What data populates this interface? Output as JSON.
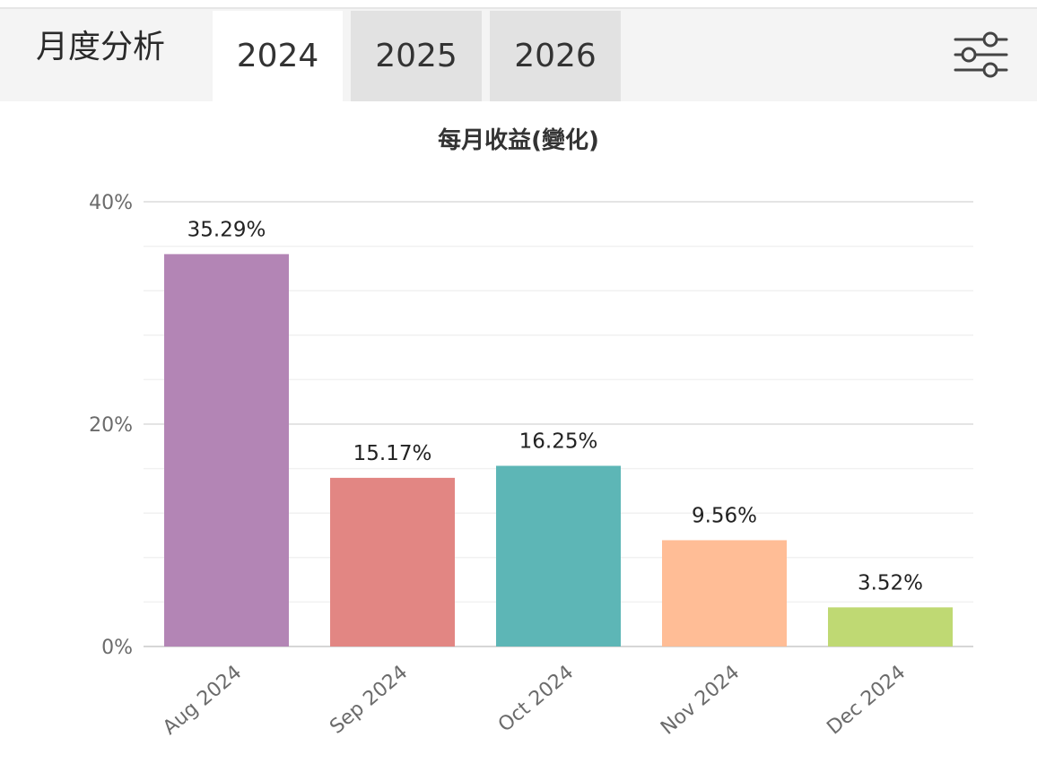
{
  "header": {
    "title": "月度分析",
    "tabs": [
      {
        "label": "2024",
        "active": true
      },
      {
        "label": "2025",
        "active": false
      },
      {
        "label": "2026",
        "active": false
      }
    ],
    "filter_icon": "sliders-icon"
  },
  "chart_data": {
    "type": "bar",
    "title": "每月收益(變化)",
    "categories": [
      "Aug 2024",
      "Sep 2024",
      "Oct 2024",
      "Nov 2024",
      "Dec 2024"
    ],
    "values": [
      35.29,
      15.17,
      16.25,
      9.56,
      3.52
    ],
    "value_labels": [
      "35.29%",
      "15.17%",
      "16.25%",
      "9.56%",
      "3.52%"
    ],
    "colors": [
      "#b385b5",
      "#e28683",
      "#5db6b6",
      "#ffbd96",
      "#bfd973"
    ],
    "ylim": [
      0,
      40
    ],
    "yticks": [
      0,
      20,
      40
    ],
    "ytick_labels": [
      "0%",
      "20%",
      "40%"
    ],
    "grid": true,
    "xlabel": "",
    "ylabel": ""
  }
}
